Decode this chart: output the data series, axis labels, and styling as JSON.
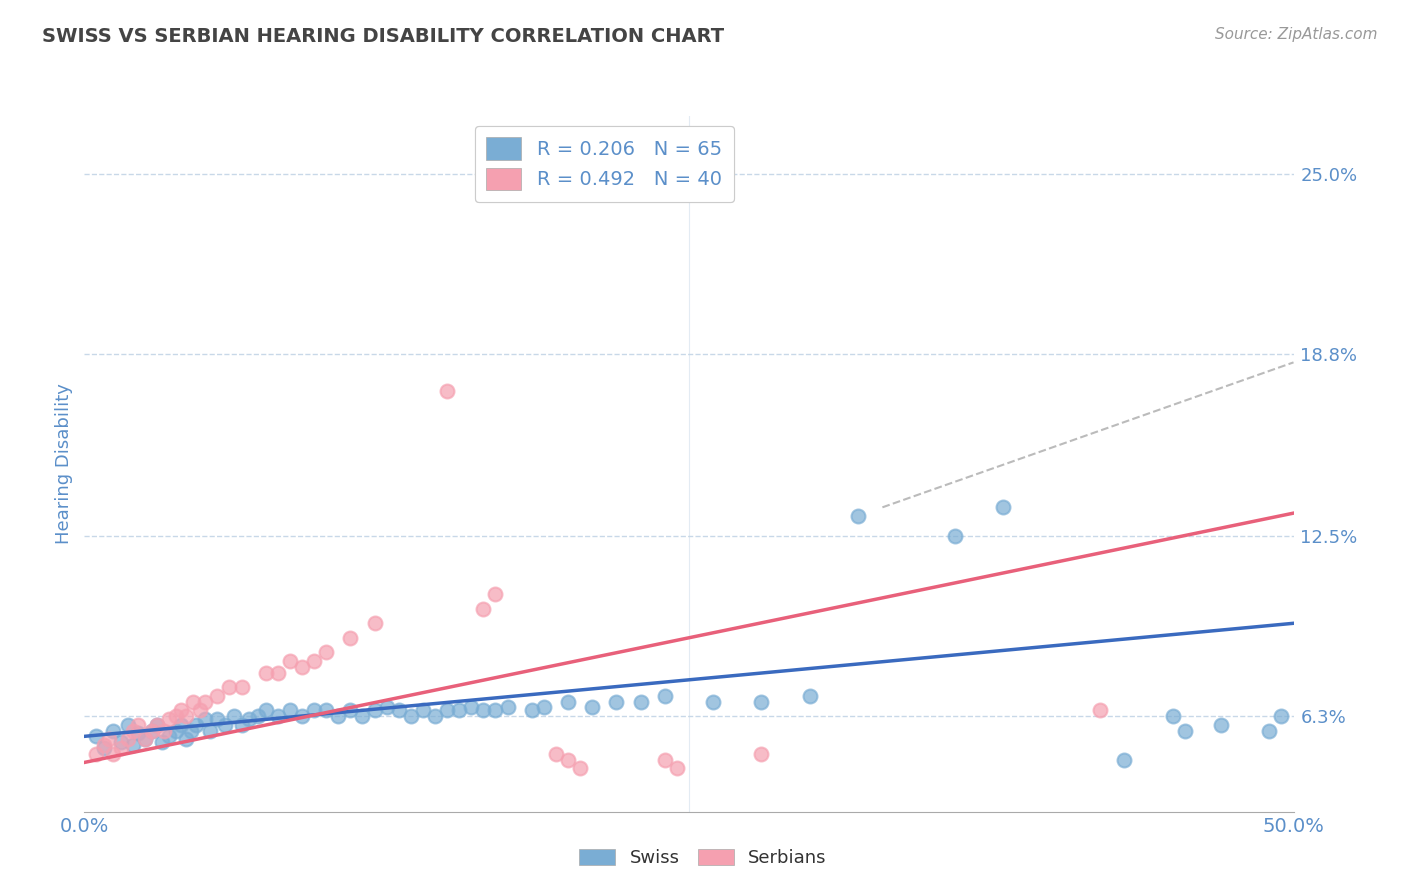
{
  "title": "SWISS VS SERBIAN HEARING DISABILITY CORRELATION CHART",
  "source": "Source: ZipAtlas.com",
  "ylabel": "Hearing Disability",
  "xlim": [
    0.0,
    0.5
  ],
  "ylim": [
    0.03,
    0.27
  ],
  "xtick_labels": [
    "0.0%",
    "50.0%"
  ],
  "ytick_labels": [
    "6.3%",
    "12.5%",
    "18.8%",
    "25.0%"
  ],
  "ytick_vals": [
    0.063,
    0.125,
    0.188,
    0.25
  ],
  "legend_r1": "R = 0.206   N = 65",
  "legend_r2": "R = 0.492   N = 40",
  "swiss_color": "#7aadd4",
  "serbian_color": "#f5a0b0",
  "swiss_line_color": "#3a6abf",
  "serbian_line_color": "#e8607a",
  "dashed_color": "#bbbbbb",
  "background_color": "#ffffff",
  "grid_color": "#c8d8e8",
  "title_color": "#444444",
  "label_color": "#5b8fc9",
  "swiss_points": [
    [
      0.005,
      0.056
    ],
    [
      0.008,
      0.052
    ],
    [
      0.012,
      0.058
    ],
    [
      0.015,
      0.054
    ],
    [
      0.018,
      0.06
    ],
    [
      0.02,
      0.053
    ],
    [
      0.022,
      0.057
    ],
    [
      0.025,
      0.055
    ],
    [
      0.028,
      0.058
    ],
    [
      0.03,
      0.06
    ],
    [
      0.032,
      0.054
    ],
    [
      0.035,
      0.056
    ],
    [
      0.038,
      0.058
    ],
    [
      0.04,
      0.06
    ],
    [
      0.042,
      0.055
    ],
    [
      0.044,
      0.058
    ],
    [
      0.046,
      0.06
    ],
    [
      0.05,
      0.062
    ],
    [
      0.052,
      0.058
    ],
    [
      0.055,
      0.062
    ],
    [
      0.058,
      0.06
    ],
    [
      0.062,
      0.063
    ],
    [
      0.065,
      0.06
    ],
    [
      0.068,
      0.062
    ],
    [
      0.072,
      0.063
    ],
    [
      0.075,
      0.065
    ],
    [
      0.08,
      0.063
    ],
    [
      0.085,
      0.065
    ],
    [
      0.09,
      0.063
    ],
    [
      0.095,
      0.065
    ],
    [
      0.1,
      0.065
    ],
    [
      0.105,
      0.063
    ],
    [
      0.11,
      0.065
    ],
    [
      0.115,
      0.063
    ],
    [
      0.12,
      0.065
    ],
    [
      0.125,
      0.066
    ],
    [
      0.13,
      0.065
    ],
    [
      0.135,
      0.063
    ],
    [
      0.14,
      0.065
    ],
    [
      0.145,
      0.063
    ],
    [
      0.15,
      0.065
    ],
    [
      0.155,
      0.065
    ],
    [
      0.16,
      0.066
    ],
    [
      0.165,
      0.065
    ],
    [
      0.17,
      0.065
    ],
    [
      0.175,
      0.066
    ],
    [
      0.185,
      0.065
    ],
    [
      0.19,
      0.066
    ],
    [
      0.2,
      0.068
    ],
    [
      0.21,
      0.066
    ],
    [
      0.22,
      0.068
    ],
    [
      0.23,
      0.068
    ],
    [
      0.24,
      0.07
    ],
    [
      0.26,
      0.068
    ],
    [
      0.28,
      0.068
    ],
    [
      0.3,
      0.07
    ],
    [
      0.32,
      0.132
    ],
    [
      0.36,
      0.125
    ],
    [
      0.38,
      0.135
    ],
    [
      0.43,
      0.048
    ],
    [
      0.45,
      0.063
    ],
    [
      0.455,
      0.058
    ],
    [
      0.47,
      0.06
    ],
    [
      0.49,
      0.058
    ],
    [
      0.495,
      0.063
    ]
  ],
  "serbian_points": [
    [
      0.005,
      0.05
    ],
    [
      0.008,
      0.053
    ],
    [
      0.01,
      0.055
    ],
    [
      0.012,
      0.05
    ],
    [
      0.015,
      0.052
    ],
    [
      0.018,
      0.055
    ],
    [
      0.02,
      0.058
    ],
    [
      0.022,
      0.06
    ],
    [
      0.025,
      0.055
    ],
    [
      0.028,
      0.058
    ],
    [
      0.03,
      0.06
    ],
    [
      0.033,
      0.058
    ],
    [
      0.035,
      0.062
    ],
    [
      0.038,
      0.063
    ],
    [
      0.04,
      0.065
    ],
    [
      0.042,
      0.063
    ],
    [
      0.045,
      0.068
    ],
    [
      0.048,
      0.065
    ],
    [
      0.05,
      0.068
    ],
    [
      0.055,
      0.07
    ],
    [
      0.06,
      0.073
    ],
    [
      0.065,
      0.073
    ],
    [
      0.075,
      0.078
    ],
    [
      0.08,
      0.078
    ],
    [
      0.085,
      0.082
    ],
    [
      0.09,
      0.08
    ],
    [
      0.095,
      0.082
    ],
    [
      0.1,
      0.085
    ],
    [
      0.11,
      0.09
    ],
    [
      0.12,
      0.095
    ],
    [
      0.15,
      0.175
    ],
    [
      0.165,
      0.1
    ],
    [
      0.17,
      0.105
    ],
    [
      0.195,
      0.05
    ],
    [
      0.2,
      0.048
    ],
    [
      0.205,
      0.045
    ],
    [
      0.24,
      0.048
    ],
    [
      0.245,
      0.045
    ],
    [
      0.28,
      0.05
    ],
    [
      0.42,
      0.065
    ]
  ]
}
